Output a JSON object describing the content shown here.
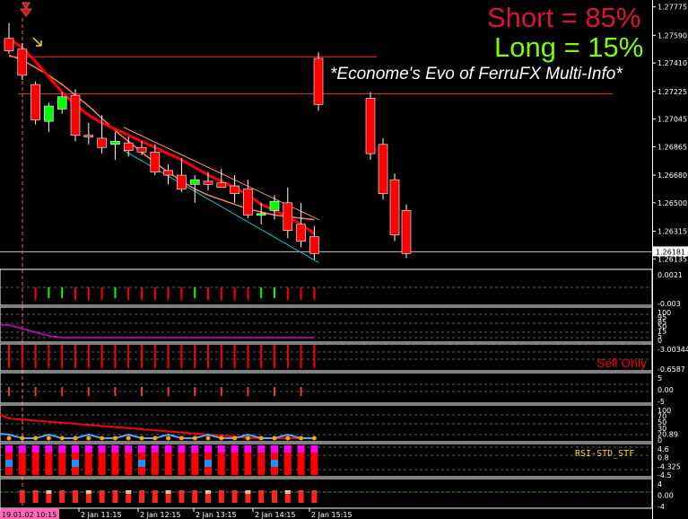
{
  "chart_data": {
    "type": "candlestick",
    "symbol_panel": "main price",
    "price_axis": {
      "ticks": [
        "1.27775",
        "1.27590",
        "1.27410",
        "1.27225",
        "1.27045",
        "1.26865",
        "1.26680",
        "1.26500",
        "1.26315",
        "1.26135"
      ],
      "range": [
        1.2609,
        1.2782
      ],
      "current_price_label": "1.26181"
    },
    "time_labels": [
      "19.01.02 10:15",
      "2 Jan 11:15",
      "2 Jan 12:15",
      "2 Jan 13:15",
      "2 Jan 14:15",
      "2 Jan 15:15"
    ],
    "candles": [
      {
        "o": 1.2757,
        "h": 1.2767,
        "l": 1.2747,
        "c": 1.2749
      },
      {
        "o": 1.275,
        "h": 1.2754,
        "l": 1.273,
        "c": 1.2733
      },
      {
        "o": 1.2727,
        "h": 1.2729,
        "l": 1.2701,
        "c": 1.2704
      },
      {
        "o": 1.2703,
        "h": 1.2715,
        "l": 1.2696,
        "c": 1.2713
      },
      {
        "o": 1.2711,
        "h": 1.2722,
        "l": 1.2708,
        "c": 1.2719
      },
      {
        "o": 1.272,
        "h": 1.2724,
        "l": 1.269,
        "c": 1.2694
      },
      {
        "o": 1.2694,
        "h": 1.2702,
        "l": 1.2688,
        "c": 1.2693
      },
      {
        "o": 1.2692,
        "h": 1.2707,
        "l": 1.2682,
        "c": 1.2686
      },
      {
        "o": 1.2688,
        "h": 1.2696,
        "l": 1.2678,
        "c": 1.269
      },
      {
        "o": 1.2689,
        "h": 1.2693,
        "l": 1.268,
        "c": 1.2684
      },
      {
        "o": 1.2686,
        "h": 1.269,
        "l": 1.2681,
        "c": 1.2683
      },
      {
        "o": 1.2683,
        "h": 1.2688,
        "l": 1.2668,
        "c": 1.267
      },
      {
        "o": 1.2671,
        "h": 1.2675,
        "l": 1.2662,
        "c": 1.2668
      },
      {
        "o": 1.2668,
        "h": 1.2679,
        "l": 1.2657,
        "c": 1.2659
      },
      {
        "o": 1.2662,
        "h": 1.2668,
        "l": 1.265,
        "c": 1.2665
      },
      {
        "o": 1.2664,
        "h": 1.267,
        "l": 1.2658,
        "c": 1.2662
      },
      {
        "o": 1.2663,
        "h": 1.2672,
        "l": 1.266,
        "c": 1.266
      },
      {
        "o": 1.2661,
        "h": 1.2668,
        "l": 1.265,
        "c": 1.2656
      },
      {
        "o": 1.2659,
        "h": 1.2665,
        "l": 1.264,
        "c": 1.2642
      },
      {
        "o": 1.2643,
        "h": 1.265,
        "l": 1.2636,
        "c": 1.2643
      },
      {
        "o": 1.2645,
        "h": 1.2655,
        "l": 1.2639,
        "c": 1.2651
      },
      {
        "o": 1.265,
        "h": 1.266,
        "l": 1.2627,
        "c": 1.2632
      },
      {
        "o": 1.2636,
        "h": 1.265,
        "l": 1.2621,
        "c": 1.2625
      },
      {
        "o": 1.2628,
        "h": 1.2635,
        "l": 1.2613,
        "c": 1.2617
      }
    ],
    "projection_candles": [
      {
        "o": 1.2744,
        "h": 1.2748,
        "l": 1.271,
        "c": 1.2714
      },
      {
        "o": 1.2718,
        "h": 1.2722,
        "l": 1.2678,
        "c": 1.2682
      },
      {
        "o": 1.2688,
        "h": 1.2692,
        "l": 1.2652,
        "c": 1.2656
      },
      {
        "o": 1.2665,
        "h": 1.2669,
        "l": 1.2625,
        "c": 1.2629
      },
      {
        "o": 1.2645,
        "h": 1.2649,
        "l": 1.2614,
        "c": 1.2617
      }
    ],
    "ma_fast": [
      1.2757,
      1.2751,
      1.2742,
      1.2732,
      1.2722,
      1.2714,
      1.2707,
      1.2702,
      1.2698,
      1.2694,
      1.269,
      1.2686,
      1.2682,
      1.2678,
      1.2673,
      1.2668,
      1.2664,
      1.266,
      1.2655,
      1.2649,
      1.2645,
      1.2641,
      1.2636,
      1.263
    ],
    "ma_slow": [
      1.2746,
      1.2743,
      1.2738,
      1.2733,
      1.2727,
      1.272,
      1.2713,
      1.2705,
      1.2697,
      1.269,
      1.2683,
      1.2676,
      1.267,
      1.2664,
      1.2659,
      1.2655,
      1.2652,
      1.2649,
      1.2646,
      1.2644,
      1.2642,
      1.2641,
      1.264,
      1.2639
    ],
    "levels": [
      1.2745,
      1.2721
    ],
    "panels": [
      {
        "name": "histogram",
        "ticks": [
          "0.0021",
          "-0.003"
        ]
      },
      {
        "name": "oscillator-1",
        "ticks": [
          "100",
          "95",
          "85",
          "50",
          "15",
          "5",
          "0"
        ]
      },
      {
        "name": "oscillator-2",
        "ticks": [
          "-3.00344",
          "-0.6587"
        ]
      },
      {
        "name": "momentum",
        "ticks": [
          "5",
          "0.00",
          "-5"
        ]
      },
      {
        "name": "rsi",
        "ticks": [
          "100",
          "70",
          "50",
          "30",
          "20.89",
          "0"
        ]
      },
      {
        "name": "rsi-std-stf",
        "ticks": [
          "4.6",
          "0.8",
          "-4.325",
          "-4.5"
        ]
      },
      {
        "name": "bottom",
        "ticks": [
          "4",
          "0.00",
          "-4"
        ]
      }
    ],
    "texts": {
      "short": "Short = 85%",
      "long": "Long = 15%",
      "caption": "*Econome's Evo of FerruFX Multi-Info*",
      "sell_only": "Sell Only",
      "rsi_label": "RSI-STD_STF"
    },
    "colors": {
      "bear": "#ff0000",
      "bull": "#00ff00",
      "ma_fast": "#ff0000",
      "ma_slow": "#ff8060",
      "channel_low": "#00ced1",
      "short_text": "#dc143c",
      "long_text": "#7cfc00"
    }
  }
}
